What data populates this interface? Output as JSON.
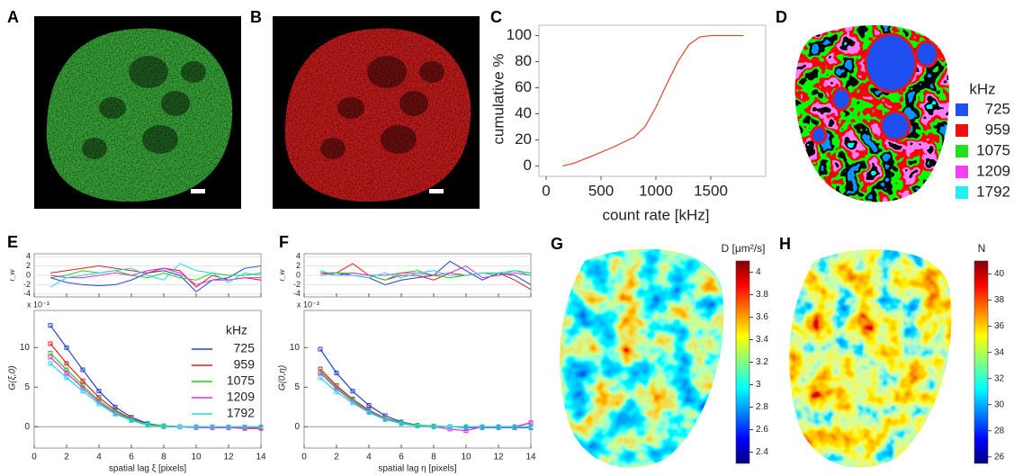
{
  "chart_data": [
    {
      "type": "image",
      "panel": "A",
      "color": "#3aa83a"
    },
    {
      "type": "image",
      "panel": "B",
      "color": "#c81e1e"
    },
    {
      "type": "line",
      "panel": "C",
      "color": "#e8442c",
      "x": [
        150,
        250,
        400,
        600,
        800,
        900,
        1000,
        1100,
        1200,
        1300,
        1400,
        1500,
        1800
      ],
      "values": [
        0,
        2,
        7,
        14,
        22,
        30,
        45,
        63,
        80,
        93,
        99,
        100,
        100
      ],
      "xlim": [
        0,
        2000
      ],
      "ylim": [
        -8,
        108
      ],
      "xticks": [
        0,
        500,
        1000,
        1500
      ],
      "yticks": [
        0,
        20,
        40,
        60,
        80,
        100
      ],
      "xlabel": "count rate [kHz]",
      "ylabel": "cumulative %"
    },
    {
      "type": "map",
      "panel": "D",
      "legend_title": "kHz",
      "categories": [
        "725",
        "959",
        "1075",
        "1209",
        "1792"
      ],
      "colors": [
        "#1f4ff0",
        "#f01010",
        "#20e020",
        "#f040f0",
        "#20f0f0"
      ]
    },
    {
      "type": "correlation",
      "panel": "E",
      "legend_title": "kHz",
      "multiplier": "x 10⁻³",
      "xlabel": "spatial lag ξ [pixels]",
      "ylabel": "G(ξ,0)",
      "residual_ylabel": "r_w",
      "x": [
        1,
        2,
        3,
        4,
        5,
        6,
        7,
        8,
        9,
        10,
        11,
        12,
        13,
        14
      ],
      "xlim": [
        0,
        14
      ],
      "xticks": [
        0,
        2,
        4,
        6,
        8,
        10,
        12,
        14
      ],
      "ylim": [
        -2.7,
        14.7
      ],
      "yticks": [
        0,
        5,
        10
      ],
      "residual_ylim": [
        -4.6,
        4.6
      ],
      "residual_yticks": [
        4,
        2,
        0,
        -2,
        -4
      ],
      "series": [
        {
          "name": "725",
          "color": "#2040e0",
          "values": [
            12.8,
            10,
            7.2,
            4.5,
            2.5,
            1.2,
            0.4,
            0.1,
            0,
            -0.1,
            -0.1,
            -0.1,
            -0.2,
            -0.2
          ],
          "residuals": [
            -0.5,
            -1.5,
            -2,
            -2.2,
            -2,
            -1,
            0.5,
            1,
            0,
            -3.5,
            -1,
            -0.5,
            1.5,
            2
          ]
        },
        {
          "name": "959",
          "color": "#e02020",
          "values": [
            10.5,
            8,
            5.8,
            3.7,
            2.1,
            1,
            0.3,
            0.1,
            0,
            0,
            -0.1,
            -0.1,
            -0.2,
            -0.2
          ],
          "residuals": [
            0.5,
            1,
            1.5,
            2,
            1.5,
            1,
            0.5,
            1.5,
            1,
            -2.5,
            0,
            -1,
            -0.5,
            -1
          ]
        },
        {
          "name": "1075",
          "color": "#20d020",
          "values": [
            9.3,
            7.2,
            5.2,
            3.3,
            1.9,
            0.9,
            0.3,
            0.1,
            0,
            0,
            0,
            -0.1,
            -0.1,
            -0.1
          ],
          "residuals": [
            -0.5,
            0,
            1,
            0.5,
            1,
            0,
            -0.5,
            0.5,
            -0.5,
            -1,
            0.5,
            0,
            0,
            0.5
          ]
        },
        {
          "name": "1209",
          "color": "#e030e0",
          "values": [
            8.8,
            6.8,
            4.9,
            3.1,
            1.7,
            0.8,
            0.2,
            0,
            0,
            -0.1,
            -0.1,
            -0.1,
            -0.1,
            -0.1
          ],
          "residuals": [
            0,
            -0.5,
            -0.5,
            0,
            0.5,
            0,
            1,
            1.5,
            0.5,
            -2,
            -1,
            -1,
            -0.5,
            -0.5
          ]
        },
        {
          "name": "1792",
          "color": "#20d8e8",
          "values": [
            8,
            6.2,
            4.5,
            2.9,
            1.6,
            0.8,
            0.2,
            0,
            0,
            0,
            0,
            0,
            0,
            0
          ],
          "residuals": [
            -2.5,
            -0.5,
            0,
            0.5,
            1,
            1.5,
            0,
            -1,
            2.5,
            1,
            0.5,
            -1.5,
            0.5,
            0
          ]
        }
      ]
    },
    {
      "type": "correlation",
      "panel": "F",
      "multiplier": "x 10⁻³",
      "xlabel": "spatial lag η [pixels]",
      "ylabel": "G(0,η)",
      "residual_ylabel": "r_w",
      "x": [
        1,
        2,
        3,
        4,
        5,
        6,
        7,
        8,
        9,
        10,
        11,
        12,
        13,
        14
      ],
      "xlim": [
        0,
        14
      ],
      "xticks": [
        0,
        2,
        4,
        6,
        8,
        10,
        12,
        14
      ],
      "ylim": [
        -2.7,
        14.7
      ],
      "yticks": [
        0,
        5,
        10
      ],
      "residual_ylim": [
        -4.6,
        4.6
      ],
      "residual_yticks": [
        4,
        2,
        0,
        -2,
        -4
      ],
      "series": [
        {
          "color": "#2040e0",
          "values": [
            9.8,
            6.8,
            4.5,
            2.7,
            1.4,
            0.6,
            0.2,
            0,
            0,
            -0.1,
            -0.1,
            -0.1,
            -0.1,
            -0.1
          ],
          "residuals": [
            0.5,
            0.5,
            0,
            -0.5,
            -2,
            -1,
            -0.5,
            0,
            3,
            1,
            -1,
            0.5,
            0,
            -2
          ]
        },
        {
          "color": "#e02020",
          "values": [
            7.3,
            5.2,
            3.5,
            2.1,
            1.1,
            0.5,
            0.2,
            0,
            0,
            0,
            0,
            0,
            0,
            0.5
          ],
          "residuals": [
            0.5,
            0.5,
            2.5,
            0,
            -1,
            0,
            0,
            -1,
            0.5,
            0,
            0.5,
            0.5,
            -1,
            -3
          ]
        },
        {
          "color": "#20d020",
          "values": [
            7,
            5,
            3.4,
            2,
            1.1,
            0.5,
            0.2,
            0.1,
            0,
            0,
            0,
            0,
            0,
            0
          ],
          "residuals": [
            0,
            0.5,
            0.5,
            0,
            -1,
            0.5,
            1,
            0,
            -0.5,
            0,
            0.5,
            0,
            1,
            0.5
          ]
        },
        {
          "color": "#e030e0",
          "values": [
            6.8,
            4.8,
            3.2,
            1.9,
            1,
            0.4,
            0.1,
            0,
            -0.3,
            -0.5,
            0,
            0,
            0,
            0.5
          ],
          "residuals": [
            0.5,
            0,
            0.5,
            0,
            0,
            0.5,
            0.5,
            0,
            0.5,
            2,
            -0.5,
            0,
            0.5,
            0
          ]
        },
        {
          "color": "#20d8e8",
          "values": [
            6.2,
            4.4,
            3,
            1.8,
            0.9,
            0.4,
            0.1,
            0,
            0,
            0,
            0,
            0,
            0,
            0
          ],
          "residuals": [
            1,
            0,
            0,
            -0.5,
            0.5,
            -0.5,
            0.5,
            1,
            0,
            0,
            0.5,
            0.5,
            1,
            0
          ]
        }
      ]
    },
    {
      "type": "heatmap",
      "panel": "G",
      "colorbar_title": "D [μm²/s]",
      "clim": [
        2.3,
        4.1
      ],
      "cticks": [
        2.4,
        2.6,
        2.8,
        3,
        3.2,
        3.4,
        3.6,
        3.8,
        4
      ]
    },
    {
      "type": "heatmap",
      "panel": "H",
      "colorbar_title": "N",
      "clim": [
        25.5,
        41
      ],
      "cticks": [
        26,
        28,
        30,
        32,
        34,
        36,
        38,
        40
      ]
    }
  ]
}
